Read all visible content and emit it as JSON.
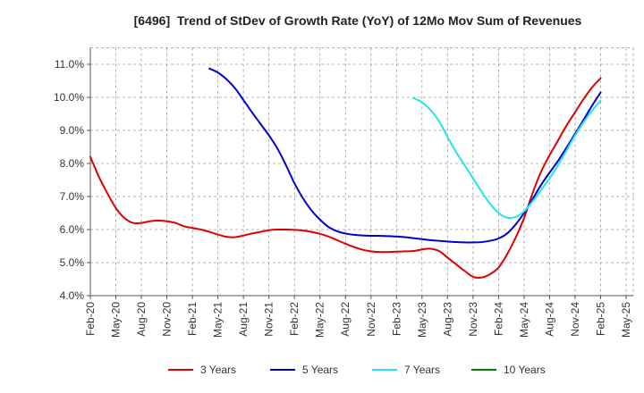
{
  "chart_data": {
    "type": "line",
    "title": "[6496]  Trend of StDev of Growth Rate (YoY) of 12Mo Mov Sum of Revenues",
    "x_ticks": [
      "Feb-20",
      "May-20",
      "Aug-20",
      "Nov-20",
      "Feb-21",
      "May-21",
      "Aug-21",
      "Nov-21",
      "Feb-22",
      "May-22",
      "Aug-22",
      "Nov-22",
      "Feb-23",
      "May-23",
      "Aug-23",
      "Nov-23",
      "Feb-24",
      "May-24",
      "Aug-24",
      "Nov-24",
      "Feb-25",
      "May-25"
    ],
    "months_per_tick": 3,
    "y_ticks": [
      "4.0%",
      "5.0%",
      "6.0%",
      "7.0%",
      "8.0%",
      "9.0%",
      "10.0%",
      "11.0%"
    ],
    "y_tick_values": [
      4,
      5,
      6,
      7,
      8,
      9,
      10,
      11
    ],
    "ylim": [
      4.0,
      11.5
    ],
    "grid": true,
    "series": [
      {
        "name": "3 Years",
        "color": "#dd0000",
        "x_start": 0,
        "values": [
          8.2,
          7.6,
          7.1,
          6.65,
          6.35,
          6.2,
          6.2,
          6.25,
          6.27,
          6.25,
          6.2,
          6.1,
          6.05,
          6.0,
          5.93,
          5.85,
          5.78,
          5.77,
          5.82,
          5.88,
          5.93,
          5.98,
          6.0,
          6.0,
          5.99,
          5.97,
          5.93,
          5.87,
          5.79,
          5.68,
          5.57,
          5.47,
          5.39,
          5.34,
          5.32,
          5.32,
          5.33,
          5.34,
          5.35,
          5.4,
          5.42,
          5.35,
          5.15,
          4.95,
          4.75,
          4.57,
          4.55,
          4.65,
          4.85,
          5.25,
          5.75,
          6.35,
          7.1,
          7.75,
          8.25,
          8.7,
          9.15,
          9.55,
          9.95,
          10.3,
          10.58
        ]
      },
      {
        "name": "5 Years",
        "color": "#0000cc",
        "x_start": 14,
        "values": [
          10.87,
          10.75,
          10.55,
          10.28,
          9.92,
          9.55,
          9.2,
          8.85,
          8.45,
          7.95,
          7.4,
          6.95,
          6.58,
          6.3,
          6.08,
          5.95,
          5.88,
          5.84,
          5.82,
          5.81,
          5.81,
          5.8,
          5.79,
          5.77,
          5.74,
          5.71,
          5.68,
          5.66,
          5.64,
          5.62,
          5.61,
          5.61,
          5.62,
          5.66,
          5.73,
          5.88,
          6.15,
          6.5,
          6.92,
          7.35,
          7.72,
          8.08,
          8.48,
          8.9,
          9.32,
          9.75,
          10.15
        ]
      },
      {
        "name": "7 Years",
        "color": "#22e4f0",
        "x_start": 38,
        "values": [
          9.98,
          9.85,
          9.62,
          9.28,
          8.8,
          8.35,
          7.95,
          7.55,
          7.15,
          6.78,
          6.5,
          6.36,
          6.38,
          6.55,
          6.85,
          7.2,
          7.55,
          7.95,
          8.4,
          8.85,
          9.25,
          9.6,
          9.9
        ]
      },
      {
        "name": "10 Years",
        "color": "#008000",
        "x_start": 0,
        "values": []
      }
    ]
  }
}
